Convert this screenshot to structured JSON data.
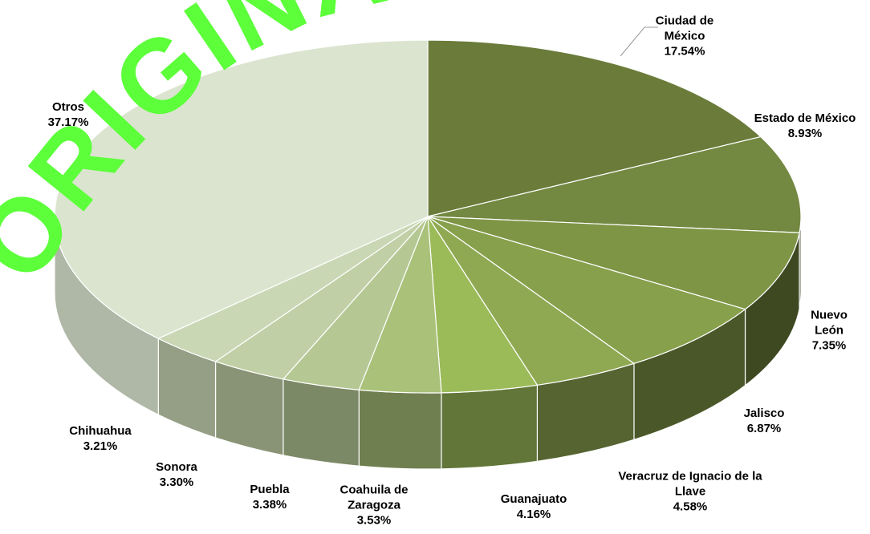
{
  "chart_data": {
    "type": "pie3d",
    "watermark": "ORIGINAL",
    "categories": [
      "Ciudad de México",
      "Estado de México",
      "Nuevo León",
      "Jalisco",
      "Veracruz de Ignacio de la Llave",
      "Guanajuato",
      "Coahuila de Zaragoza",
      "Puebla",
      "Sonora",
      "Chihuahua",
      "Otros"
    ],
    "values": [
      17.54,
      8.93,
      7.35,
      6.87,
      4.58,
      4.16,
      3.53,
      3.38,
      3.3,
      3.21,
      37.17
    ],
    "value_labels": [
      "17.54%",
      "8.93%",
      "7.35%",
      "6.87%",
      "4.58%",
      "4.16%",
      "3.53%",
      "3.38%",
      "3.30%",
      "3.21%",
      "37.17%"
    ],
    "colors": [
      "#6a7b3a",
      "#738840",
      "#7e9546",
      "#87a04b",
      "#8fa953",
      "#9bbb59",
      "#a9c179",
      "#b5c894",
      "#c0cfa5",
      "#cad7b5",
      "#dbe4cf"
    ]
  }
}
